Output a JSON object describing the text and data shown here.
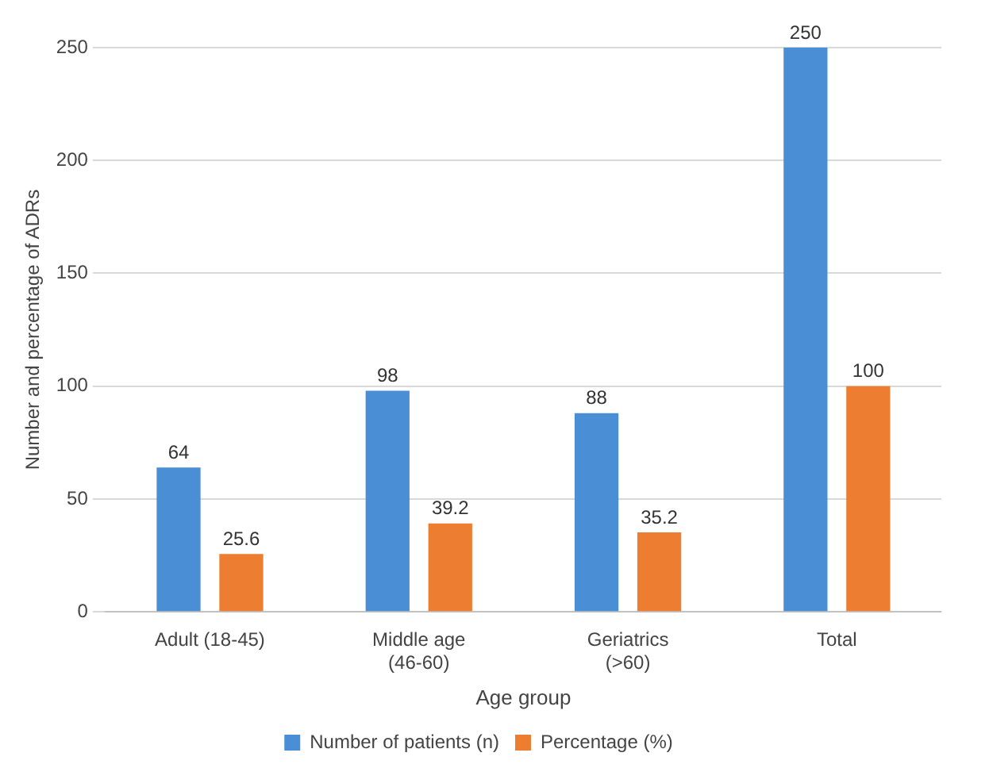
{
  "chart_data": {
    "type": "bar",
    "xlabel": "Age group",
    "ylabel": "Number and percentage of ADRs",
    "categories": [
      "Adult (18-45)",
      "Middle age (46-60)",
      "Geriatrics (>60)",
      "Total"
    ],
    "series": [
      {
        "name": "Number of patients (n)",
        "color": "#4a8fd6",
        "values": [
          64,
          98,
          88,
          250
        ]
      },
      {
        "name": "Percentage (%)",
        "color": "#ed7d31",
        "values": [
          25.6,
          39.2,
          35.2,
          100
        ]
      }
    ],
    "ylim": [
      0,
      250
    ],
    "yticks": [
      0,
      50,
      100,
      150,
      200,
      250
    ],
    "grid": "y",
    "legend": "bottom",
    "data_labels": true
  }
}
